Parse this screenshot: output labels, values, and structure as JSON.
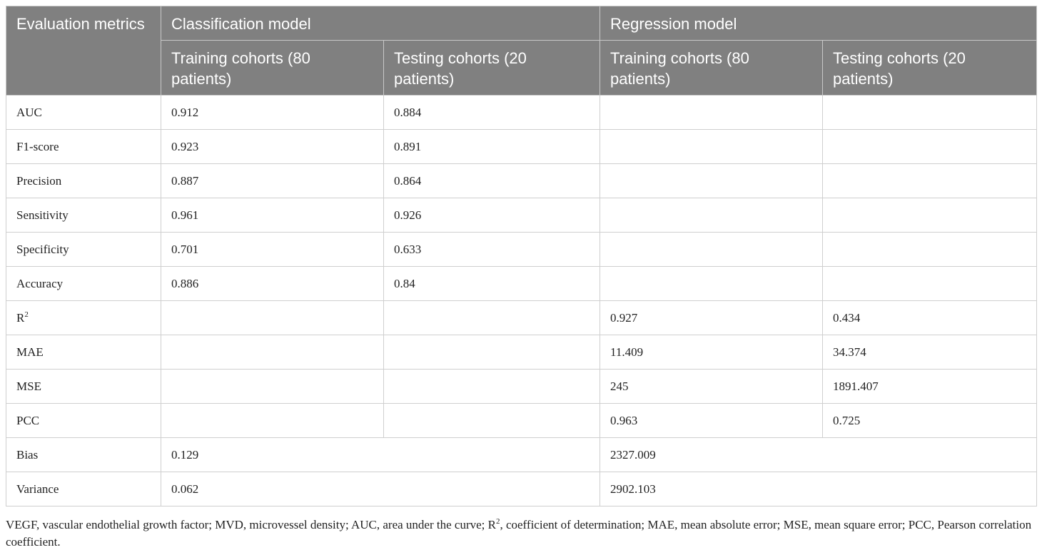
{
  "table": {
    "header": {
      "metric": "Evaluation metrics",
      "classification": "Classification model",
      "regression": "Regression model",
      "training": "Training cohorts (80 patients)",
      "testing": "Testing cohorts (20 patients)"
    },
    "rows": [
      {
        "metric": "AUC",
        "c_train": "0.912",
        "c_test": "0.884",
        "r_train": "",
        "r_test": ""
      },
      {
        "metric": "F1-score",
        "c_train": "0.923",
        "c_test": "0.891",
        "r_train": "",
        "r_test": ""
      },
      {
        "metric": "Precision",
        "c_train": "0.887",
        "c_test": "0.864",
        "r_train": "",
        "r_test": ""
      },
      {
        "metric": "Sensitivity",
        "c_train": "0.961",
        "c_test": "0.926",
        "r_train": "",
        "r_test": ""
      },
      {
        "metric": "Specificity",
        "c_train": "0.701",
        "c_test": "0.633",
        "r_train": "",
        "r_test": ""
      },
      {
        "metric": "Accuracy",
        "c_train": "0.886",
        "c_test": "0.84",
        "r_train": "",
        "r_test": ""
      },
      {
        "metric": "R",
        "sup": "2",
        "c_train": "",
        "c_test": "",
        "r_train": "0.927",
        "r_test": "0.434"
      },
      {
        "metric": "MAE",
        "c_train": "",
        "c_test": "",
        "r_train": "11.409",
        "r_test": "34.374"
      },
      {
        "metric": "MSE",
        "c_train": "",
        "c_test": "",
        "r_train": "245",
        "r_test": "1891.407"
      },
      {
        "metric": "PCC",
        "c_train": "",
        "c_test": "",
        "r_train": "0.963",
        "r_test": "0.725"
      }
    ],
    "merged_rows": [
      {
        "metric": "Bias",
        "classification": "0.129",
        "regression": "2327.009"
      },
      {
        "metric": "Variance",
        "classification": "0.062",
        "regression": "2902.103"
      }
    ]
  },
  "footnote": {
    "part1": "VEGF, vascular endothelial growth factor; MVD, microvessel density; AUC, area under the curve; R",
    "sup": "2",
    "part2": ", coefficient of determination; MAE, mean absolute error; MSE, mean square error; PCC, Pearson correlation coefficient."
  }
}
